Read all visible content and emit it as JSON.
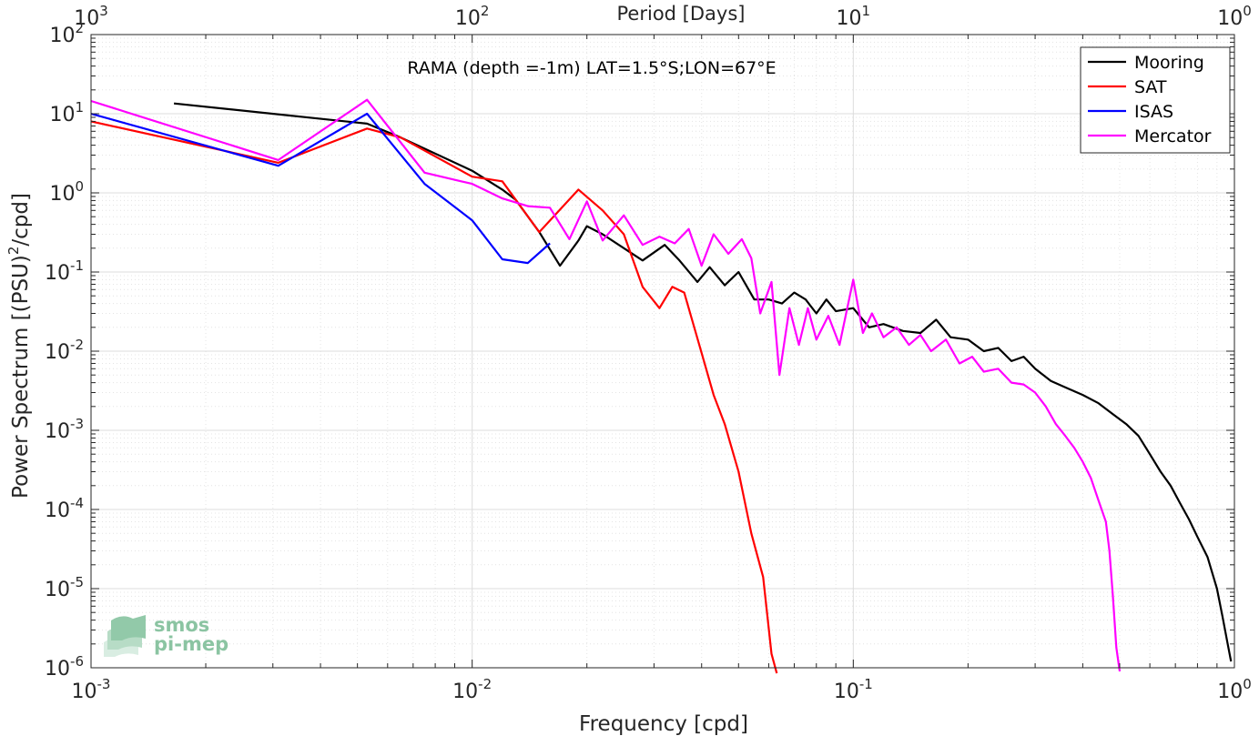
{
  "chart_data": {
    "type": "line",
    "title": "RAMA (depth =-1m) LAT=1.5°S;LON=67°E",
    "xlabel": "Frequency [cpd]",
    "ylabel_base": "Power Spectrum [(PSU)",
    "ylabel_exp": "2",
    "ylabel_tail": "/cpd]",
    "top_xlabel": "Period [Days]",
    "xscale": "log",
    "yscale": "log",
    "xlim": [
      0.001,
      1
    ],
    "ylim": [
      1e-06,
      100
    ],
    "grid": true,
    "minor_grid": true,
    "legend_position": "top-right",
    "x_ticks": [
      {
        "value": 0.001,
        "base": "10",
        "exp": "-3"
      },
      {
        "value": 0.01,
        "base": "10",
        "exp": "-2"
      },
      {
        "value": 0.1,
        "base": "10",
        "exp": "-1"
      },
      {
        "value": 1,
        "base": "10",
        "exp": "0"
      }
    ],
    "top_ticks": [
      {
        "value": 0.001,
        "base": "10",
        "exp": "3"
      },
      {
        "value": 0.01,
        "base": "10",
        "exp": "2"
      },
      {
        "value": 0.1,
        "base": "10",
        "exp": "1"
      },
      {
        "value": 1,
        "base": "10",
        "exp": "0"
      }
    ],
    "y_ticks": [
      {
        "value": 1e-06,
        "base": "10",
        "exp": "-6"
      },
      {
        "value": 1e-05,
        "base": "10",
        "exp": "-5"
      },
      {
        "value": 0.0001,
        "base": "10",
        "exp": "-4"
      },
      {
        "value": 0.001,
        "base": "10",
        "exp": "-3"
      },
      {
        "value": 0.01,
        "base": "10",
        "exp": "-2"
      },
      {
        "value": 0.1,
        "base": "10",
        "exp": "-1"
      },
      {
        "value": 1,
        "base": "10",
        "exp": "0"
      },
      {
        "value": 10,
        "base": "10",
        "exp": "1"
      },
      {
        "value": 100,
        "base": "10",
        "exp": "2"
      }
    ],
    "series": [
      {
        "name": "Mooring",
        "color": "#000000",
        "points": [
          [
            0.00165,
            13.5
          ],
          [
            0.0053,
            7.5
          ],
          [
            0.0065,
            5.0
          ],
          [
            0.01,
            1.9
          ],
          [
            0.012,
            1.1
          ],
          [
            0.013,
            0.82
          ],
          [
            0.015,
            0.32
          ],
          [
            0.017,
            0.12
          ],
          [
            0.019,
            0.25
          ],
          [
            0.02,
            0.38
          ],
          [
            0.022,
            0.3
          ],
          [
            0.025,
            0.2
          ],
          [
            0.028,
            0.14
          ],
          [
            0.032,
            0.22
          ],
          [
            0.035,
            0.14
          ],
          [
            0.039,
            0.075
          ],
          [
            0.042,
            0.115
          ],
          [
            0.046,
            0.068
          ],
          [
            0.05,
            0.1
          ],
          [
            0.055,
            0.045
          ],
          [
            0.06,
            0.045
          ],
          [
            0.065,
            0.04
          ],
          [
            0.07,
            0.055
          ],
          [
            0.075,
            0.045
          ],
          [
            0.08,
            0.03
          ],
          [
            0.085,
            0.045
          ],
          [
            0.09,
            0.032
          ],
          [
            0.1,
            0.035
          ],
          [
            0.11,
            0.02
          ],
          [
            0.12,
            0.022
          ],
          [
            0.135,
            0.018
          ],
          [
            0.15,
            0.017
          ],
          [
            0.165,
            0.025
          ],
          [
            0.18,
            0.015
          ],
          [
            0.2,
            0.014
          ],
          [
            0.22,
            0.01
          ],
          [
            0.24,
            0.011
          ],
          [
            0.26,
            0.0075
          ],
          [
            0.28,
            0.0085
          ],
          [
            0.3,
            0.006
          ],
          [
            0.33,
            0.0042
          ],
          [
            0.36,
            0.0035
          ],
          [
            0.4,
            0.0028
          ],
          [
            0.44,
            0.0022
          ],
          [
            0.48,
            0.0016
          ],
          [
            0.52,
            0.0012
          ],
          [
            0.56,
            0.00085
          ],
          [
            0.6,
            0.0005
          ],
          [
            0.64,
            0.0003
          ],
          [
            0.68,
            0.0002
          ],
          [
            0.72,
            0.00012
          ],
          [
            0.76,
            7.5e-05
          ],
          [
            0.8,
            4.5e-05
          ],
          [
            0.85,
            2.5e-05
          ],
          [
            0.9,
            1e-05
          ],
          [
            0.93,
            4.5e-06
          ],
          [
            0.96,
            2e-06
          ],
          [
            0.98,
            1.2e-06
          ]
        ]
      },
      {
        "name": "SAT",
        "color": "#ff0000",
        "points": [
          [
            0.001,
            8.0
          ],
          [
            0.0031,
            2.4
          ],
          [
            0.0053,
            6.5
          ],
          [
            0.0065,
            5.0
          ],
          [
            0.01,
            1.6
          ],
          [
            0.012,
            1.4
          ],
          [
            0.015,
            0.32
          ],
          [
            0.019,
            1.1
          ],
          [
            0.022,
            0.6
          ],
          [
            0.025,
            0.3
          ],
          [
            0.028,
            0.065
          ],
          [
            0.031,
            0.035
          ],
          [
            0.0335,
            0.065
          ],
          [
            0.036,
            0.055
          ],
          [
            0.04,
            0.0095
          ],
          [
            0.043,
            0.0028
          ],
          [
            0.046,
            0.0012
          ],
          [
            0.05,
            0.0003
          ],
          [
            0.054,
            5e-05
          ],
          [
            0.058,
            1.4e-05
          ],
          [
            0.061,
            1.5e-06
          ],
          [
            0.063,
            8.5e-07
          ]
        ]
      },
      {
        "name": "ISAS",
        "color": "#0000ff",
        "points": [
          [
            0.001,
            10.0
          ],
          [
            0.0031,
            2.2
          ],
          [
            0.0053,
            10.0
          ],
          [
            0.0075,
            1.3
          ],
          [
            0.01,
            0.45
          ],
          [
            0.012,
            0.145
          ],
          [
            0.014,
            0.13
          ],
          [
            0.016,
            0.23
          ]
        ]
      },
      {
        "name": "Mercator",
        "color": "#ff00ff",
        "points": [
          [
            0.001,
            14.5
          ],
          [
            0.0031,
            2.6
          ],
          [
            0.0053,
            15.0
          ],
          [
            0.0075,
            1.8
          ],
          [
            0.01,
            1.3
          ],
          [
            0.012,
            0.85
          ],
          [
            0.014,
            0.68
          ],
          [
            0.016,
            0.65
          ],
          [
            0.018,
            0.26
          ],
          [
            0.02,
            0.78
          ],
          [
            0.022,
            0.25
          ],
          [
            0.025,
            0.52
          ],
          [
            0.028,
            0.22
          ],
          [
            0.031,
            0.28
          ],
          [
            0.034,
            0.23
          ],
          [
            0.037,
            0.35
          ],
          [
            0.04,
            0.12
          ],
          [
            0.043,
            0.3
          ],
          [
            0.047,
            0.17
          ],
          [
            0.051,
            0.26
          ],
          [
            0.054,
            0.15
          ],
          [
            0.057,
            0.03
          ],
          [
            0.061,
            0.075
          ],
          [
            0.064,
            0.005
          ],
          [
            0.068,
            0.035
          ],
          [
            0.072,
            0.012
          ],
          [
            0.076,
            0.035
          ],
          [
            0.08,
            0.014
          ],
          [
            0.086,
            0.028
          ],
          [
            0.092,
            0.012
          ],
          [
            0.1,
            0.08
          ],
          [
            0.106,
            0.017
          ],
          [
            0.112,
            0.03
          ],
          [
            0.12,
            0.015
          ],
          [
            0.13,
            0.02
          ],
          [
            0.14,
            0.012
          ],
          [
            0.15,
            0.016
          ],
          [
            0.16,
            0.01
          ],
          [
            0.175,
            0.014
          ],
          [
            0.19,
            0.007
          ],
          [
            0.205,
            0.0085
          ],
          [
            0.22,
            0.0055
          ],
          [
            0.24,
            0.006
          ],
          [
            0.26,
            0.004
          ],
          [
            0.28,
            0.0038
          ],
          [
            0.3,
            0.003
          ],
          [
            0.32,
            0.002
          ],
          [
            0.34,
            0.0012
          ],
          [
            0.36,
            0.00085
          ],
          [
            0.38,
            0.0006
          ],
          [
            0.4,
            0.0004
          ],
          [
            0.42,
            0.00025
          ],
          [
            0.44,
            0.00013
          ],
          [
            0.46,
            7e-05
          ],
          [
            0.47,
            3e-05
          ],
          [
            0.48,
            8e-06
          ],
          [
            0.49,
            1.8e-06
          ],
          [
            0.5,
            9e-07
          ]
        ]
      }
    ]
  },
  "logo": {
    "line1": "smos",
    "line2": "pi-mep"
  }
}
